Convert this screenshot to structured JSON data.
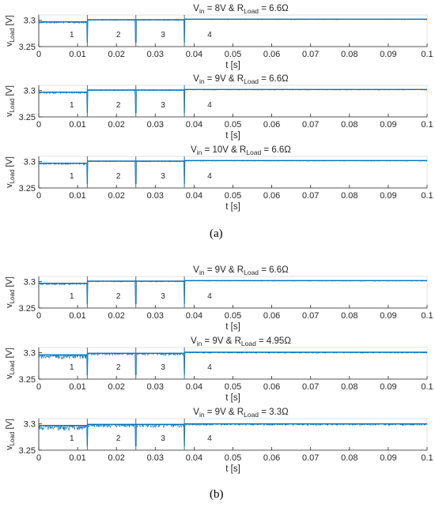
{
  "panel_labels": [
    "(a)",
    "(b)"
  ],
  "chart_data": [
    {
      "type": "line",
      "panel": "a",
      "title_main": "V",
      "title_sub1": "in",
      "title_mid": " = 8V & R",
      "title_sub2": "Load",
      "title_end": " = 6.6Ω",
      "ylabel_main": "v",
      "ylabel_sub": "Load",
      "ylabel_unit": " [V]",
      "xlabel": "t [s]",
      "xlim": [
        0,
        0.1
      ],
      "ylim": [
        3.25,
        3.31
      ],
      "xticks": [
        "0",
        "0.01",
        "0.02",
        "0.03",
        "0.04",
        "0.05",
        "0.06",
        "0.07",
        "0.08",
        "0.09",
        "0.1"
      ],
      "yticks": [
        "3.25",
        "3.3"
      ],
      "grid": false,
      "boundaries": [
        0.0125,
        0.025,
        0.0375
      ],
      "region_labels": [
        {
          "text": "1",
          "x": 0.0085
        },
        {
          "text": "2",
          "x": 0.0205
        },
        {
          "text": "3",
          "x": 0.032
        },
        {
          "text": "4",
          "x": 0.044
        }
      ],
      "series": [
        {
          "baseline": [
            3.297,
            3.301,
            3.301,
            3.302
          ],
          "ripple": [
            0.003,
            0.0015,
            0.0015,
            0.0012
          ]
        }
      ]
    },
    {
      "type": "line",
      "panel": "a",
      "title_main": "V",
      "title_sub1": "in",
      "title_mid": " = 9V & R",
      "title_sub2": "Load",
      "title_end": " = 6.6Ω",
      "ylabel_main": "v",
      "ylabel_sub": "Load",
      "ylabel_unit": " [V]",
      "xlabel": "t [s]",
      "xlim": [
        0,
        0.1
      ],
      "ylim": [
        3.25,
        3.31
      ],
      "xticks": [
        "0",
        "0.01",
        "0.02",
        "0.03",
        "0.04",
        "0.05",
        "0.06",
        "0.07",
        "0.08",
        "0.09",
        "0.1"
      ],
      "yticks": [
        "3.25",
        "3.3"
      ],
      "grid": false,
      "boundaries": [
        0.0125,
        0.025,
        0.0375
      ],
      "region_labels": [
        {
          "text": "1",
          "x": 0.0085
        },
        {
          "text": "2",
          "x": 0.0205
        },
        {
          "text": "3",
          "x": 0.032
        },
        {
          "text": "4",
          "x": 0.044
        }
      ],
      "series": [
        {
          "baseline": [
            3.297,
            3.301,
            3.301,
            3.302
          ],
          "ripple": [
            0.003,
            0.0015,
            0.0015,
            0.0012
          ]
        }
      ]
    },
    {
      "type": "line",
      "panel": "a",
      "title_main": "V",
      "title_sub1": "in",
      "title_mid": " = 10V & R",
      "title_sub2": "Load",
      "title_end": " = 6.6Ω",
      "ylabel_main": "v",
      "ylabel_sub": "Load",
      "ylabel_unit": " [V]",
      "xlabel": "t [s]",
      "xlim": [
        0,
        0.1
      ],
      "ylim": [
        3.25,
        3.31
      ],
      "xticks": [
        "0",
        "0.01",
        "0.02",
        "0.03",
        "0.04",
        "0.05",
        "0.06",
        "0.07",
        "0.08",
        "0.09",
        "0.1"
      ],
      "yticks": [
        "3.25",
        "3.3"
      ],
      "grid": false,
      "boundaries": [
        0.0125,
        0.025,
        0.0375
      ],
      "region_labels": [
        {
          "text": "1",
          "x": 0.0085
        },
        {
          "text": "2",
          "x": 0.0205
        },
        {
          "text": "3",
          "x": 0.032
        },
        {
          "text": "4",
          "x": 0.044
        }
      ],
      "series": [
        {
          "baseline": [
            3.297,
            3.301,
            3.301,
            3.302
          ],
          "ripple": [
            0.003,
            0.0015,
            0.0015,
            0.0012
          ]
        }
      ]
    },
    {
      "type": "line",
      "panel": "b",
      "title_main": "V",
      "title_sub1": "in",
      "title_mid": " = 9V & R",
      "title_sub2": "Load",
      "title_end": " = 6.6Ω",
      "ylabel_main": "v",
      "ylabel_sub": "Load",
      "ylabel_unit": " [V]",
      "xlabel": "t [s]",
      "xlim": [
        0,
        0.1
      ],
      "ylim": [
        3.25,
        3.31
      ],
      "xticks": [
        "0",
        "0.01",
        "0.02",
        "0.03",
        "0.04",
        "0.05",
        "0.06",
        "0.07",
        "0.08",
        "0.09",
        "0.1"
      ],
      "yticks": [
        "3.25",
        "3.3"
      ],
      "grid": false,
      "boundaries": [
        0.0125,
        0.025,
        0.0375
      ],
      "region_labels": [
        {
          "text": "1",
          "x": 0.0085
        },
        {
          "text": "2",
          "x": 0.0205
        },
        {
          "text": "3",
          "x": 0.032
        },
        {
          "text": "4",
          "x": 0.044
        }
      ],
      "series": [
        {
          "baseline": [
            3.297,
            3.301,
            3.301,
            3.302
          ],
          "ripple": [
            0.003,
            0.0015,
            0.0015,
            0.0012
          ]
        }
      ]
    },
    {
      "type": "line",
      "panel": "b",
      "title_main": "V",
      "title_sub1": "in",
      "title_mid": " = 9V & R",
      "title_sub2": "Load",
      "title_end": " = 4.95Ω",
      "ylabel_main": "v",
      "ylabel_sub": "Load",
      "ylabel_unit": " [V]",
      "xlabel": "t [s]",
      "xlim": [
        0,
        0.1
      ],
      "ylim": [
        3.25,
        3.31
      ],
      "xticks": [
        "0",
        "0.01",
        "0.02",
        "0.03",
        "0.04",
        "0.05",
        "0.06",
        "0.07",
        "0.08",
        "0.09",
        "0.1"
      ],
      "yticks": [
        "3.25",
        "3.3"
      ],
      "grid": false,
      "boundaries": [
        0.0125,
        0.025,
        0.0375
      ],
      "region_labels": [
        {
          "text": "1",
          "x": 0.0085
        },
        {
          "text": "2",
          "x": 0.0205
        },
        {
          "text": "3",
          "x": 0.032
        },
        {
          "text": "4",
          "x": 0.044
        }
      ],
      "series": [
        {
          "baseline": [
            3.296,
            3.299,
            3.299,
            3.301
          ],
          "ripple": [
            0.008,
            0.004,
            0.004,
            0.002
          ]
        }
      ]
    },
    {
      "type": "line",
      "panel": "b",
      "title_main": "V",
      "title_sub1": "in",
      "title_mid": " = 9V & R",
      "title_sub2": "Load",
      "title_end": " = 3.3Ω",
      "ylabel_main": "v",
      "ylabel_sub": "Load",
      "ylabel_unit": " [V]",
      "xlabel": "t [s]",
      "xlim": [
        0,
        0.1
      ],
      "ylim": [
        3.25,
        3.31
      ],
      "xticks": [
        "0",
        "0.01",
        "0.02",
        "0.03",
        "0.04",
        "0.05",
        "0.06",
        "0.07",
        "0.08",
        "0.09",
        "0.1"
      ],
      "yticks": [
        "3.25",
        "3.3"
      ],
      "grid": false,
      "boundaries": [
        0.0125,
        0.025,
        0.0375
      ],
      "region_labels": [
        {
          "text": "1",
          "x": 0.0085
        },
        {
          "text": "2",
          "x": 0.0205
        },
        {
          "text": "3",
          "x": 0.032
        },
        {
          "text": "4",
          "x": 0.044
        }
      ],
      "series": [
        {
          "baseline": [
            3.297,
            3.299,
            3.299,
            3.3
          ],
          "ripple": [
            0.01,
            0.006,
            0.006,
            0.003
          ]
        }
      ]
    }
  ],
  "colors": {
    "series": "#0072BD",
    "axis": "#262626",
    "boundary": "#4d6f87",
    "frame": "#d9d9d9"
  }
}
